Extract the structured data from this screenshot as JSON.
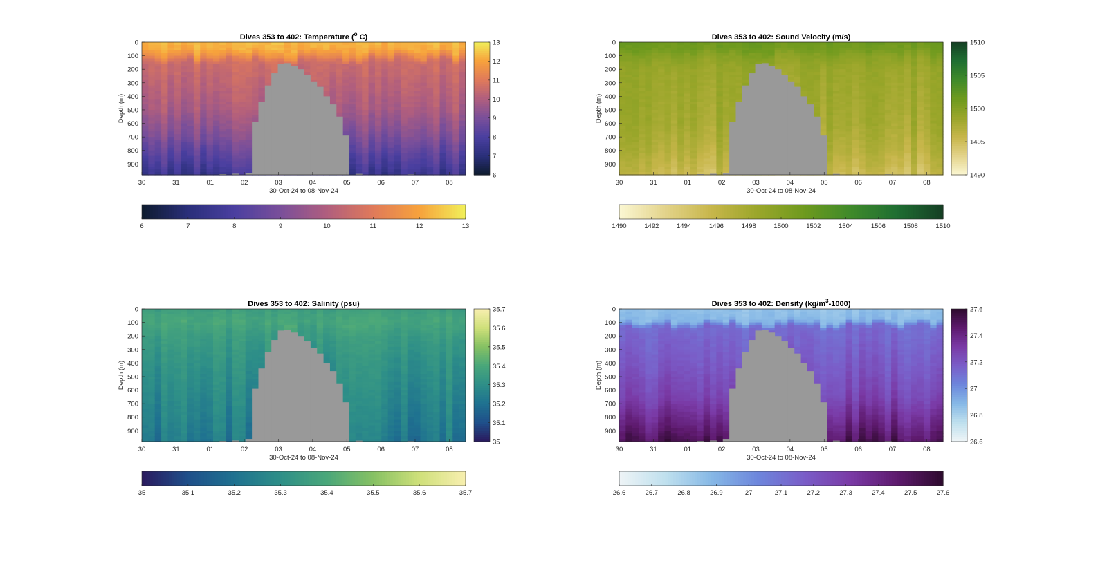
{
  "figure": {
    "xlabel": "30-Oct-24 to 08-Nov-24",
    "ylabel": "Depth (m)",
    "depth_ticks": [
      "0",
      "100",
      "200",
      "300",
      "400",
      "500",
      "600",
      "700",
      "800",
      "900"
    ],
    "date_ticks": [
      "30",
      "31",
      "01",
      "02",
      "03",
      "04",
      "05",
      "06",
      "07",
      "08"
    ],
    "no_data_color": "#999999"
  },
  "chart_data": [
    {
      "type": "heatmap",
      "title": "Dives 353 to 402: Temperature (°C)",
      "title_main": "Dives 353 to 402: Temperature (",
      "title_sup": "o",
      "title_tail": " C)",
      "xlabel": "30-Oct-24 to 08-Nov-24",
      "ylabel": "Depth (m)",
      "x_ticks": [
        "30",
        "31",
        "01",
        "02",
        "03",
        "04",
        "05",
        "06",
        "07",
        "08"
      ],
      "y_ticks": [
        "0",
        "100",
        "200",
        "300",
        "400",
        "500",
        "600",
        "700",
        "800",
        "900"
      ],
      "ylim": [
        0,
        980
      ],
      "clim": [
        6,
        13
      ],
      "colorbar_ticks": [
        "6",
        "7",
        "8",
        "9",
        "10",
        "11",
        "12",
        "13"
      ],
      "colormap": [
        "#0d1b2e",
        "#2a2f7a",
        "#4a3fa0",
        "#7a4f9a",
        "#b05e7e",
        "#e07a5a",
        "#f7a23c",
        "#f1f05a"
      ],
      "profile": [
        [
          0,
          12.3
        ],
        [
          60,
          12.1
        ],
        [
          100,
          11.6
        ],
        [
          150,
          10.6
        ],
        [
          300,
          10.3
        ],
        [
          500,
          9.9
        ],
        [
          700,
          9.1
        ],
        [
          850,
          8.3
        ],
        [
          980,
          7.6
        ]
      ]
    },
    {
      "type": "heatmap",
      "title": "Dives 353 to 402: Sound Velocity (m/s)",
      "title_main": "Dives 353 to 402: Sound Velocity (m/s)",
      "title_sup": "",
      "title_tail": "",
      "xlabel": "30-Oct-24 to 08-Nov-24",
      "ylabel": "Depth (m)",
      "x_ticks": [
        "30",
        "31",
        "01",
        "02",
        "03",
        "04",
        "05",
        "06",
        "07",
        "08"
      ],
      "y_ticks": [
        "0",
        "100",
        "200",
        "300",
        "400",
        "500",
        "600",
        "700",
        "800",
        "900"
      ],
      "ylim": [
        0,
        980
      ],
      "clim": [
        1490,
        1510
      ],
      "colorbar_ticks": [
        "1490",
        "1492",
        "1494",
        "1496",
        "1498",
        "1500",
        "1502",
        "1504",
        "1506",
        "1508",
        "1510"
      ],
      "side_ticks": [
        "1490",
        "1495",
        "1500",
        "1505",
        "1510"
      ],
      "colormap": [
        "#fbf7d3",
        "#e3d38a",
        "#c7b64a",
        "#9aa62a",
        "#6e9a1e",
        "#3f8a2a",
        "#1f6e32",
        "#153f24"
      ],
      "profile": [
        [
          0,
          1501.5
        ],
        [
          60,
          1501.0
        ],
        [
          100,
          1499.8
        ],
        [
          200,
          1498.6
        ],
        [
          400,
          1498.3
        ],
        [
          600,
          1498.0
        ],
        [
          800,
          1497.0
        ],
        [
          980,
          1495.5
        ]
      ]
    },
    {
      "type": "heatmap",
      "title": "Dives 353 to 402: Salinity (psu)",
      "title_main": "Dives 353 to 402: Salinity (psu)",
      "title_sup": "",
      "title_tail": "",
      "xlabel": "30-Oct-24 to 08-Nov-24",
      "ylabel": "Depth (m)",
      "x_ticks": [
        "30",
        "31",
        "01",
        "02",
        "03",
        "04",
        "05",
        "06",
        "07",
        "08"
      ],
      "y_ticks": [
        "0",
        "100",
        "200",
        "300",
        "400",
        "500",
        "600",
        "700",
        "800",
        "900"
      ],
      "ylim": [
        0,
        980
      ],
      "clim": [
        35,
        35.7
      ],
      "colorbar_ticks": [
        "35",
        "35.1",
        "35.2",
        "35.3",
        "35.4",
        "35.5",
        "35.6",
        "35.7"
      ],
      "colormap": [
        "#2a1a5e",
        "#1f4f8a",
        "#1f7290",
        "#2e8f88",
        "#4aa77a",
        "#86c163",
        "#cfe07a",
        "#f8efb0"
      ],
      "profile": [
        [
          0,
          35.36
        ],
        [
          100,
          35.39
        ],
        [
          200,
          35.35
        ],
        [
          400,
          35.31
        ],
        [
          600,
          35.28
        ],
        [
          800,
          35.25
        ],
        [
          980,
          35.22
        ]
      ]
    },
    {
      "type": "heatmap",
      "title": "Dives 353 to 402: Density (kg/m³-1000)",
      "title_main": "Dives 353 to 402: Density (kg/m",
      "title_sup": "3",
      "title_tail": "-1000)",
      "xlabel": "30-Oct-24 to 08-Nov-24",
      "ylabel": "Depth (m)",
      "x_ticks": [
        "30",
        "31",
        "01",
        "02",
        "03",
        "04",
        "05",
        "06",
        "07",
        "08"
      ],
      "y_ticks": [
        "0",
        "100",
        "200",
        "300",
        "400",
        "500",
        "600",
        "700",
        "800",
        "900"
      ],
      "ylim": [
        0,
        980
      ],
      "clim": [
        26.6,
        27.6
      ],
      "colorbar_ticks": [
        "26.6",
        "26.7",
        "26.8",
        "26.9",
        "27",
        "27.1",
        "27.2",
        "27.3",
        "27.4",
        "27.5",
        "27.6"
      ],
      "side_ticks": [
        "26.6",
        "26.8",
        "27",
        "27.2",
        "27.4",
        "27.6"
      ],
      "colormap": [
        "#eef4f6",
        "#bfe0ee",
        "#86b8e6",
        "#6d86dc",
        "#7a5dc8",
        "#7a3aa6",
        "#5e1a6e",
        "#2e0a2e"
      ],
      "profile": [
        [
          0,
          26.85
        ],
        [
          90,
          26.88
        ],
        [
          140,
          27.12
        ],
        [
          400,
          27.18
        ],
        [
          650,
          27.26
        ],
        [
          850,
          27.4
        ],
        [
          980,
          27.5
        ]
      ]
    }
  ]
}
